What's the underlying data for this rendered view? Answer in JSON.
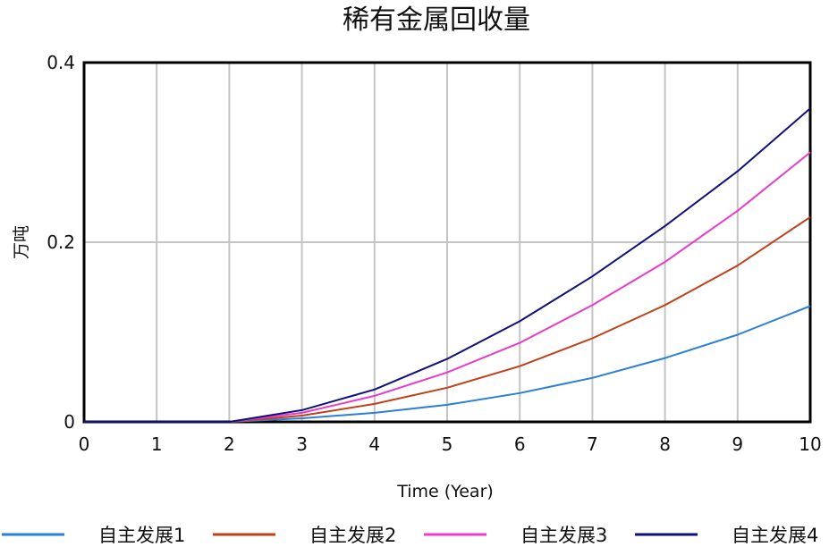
{
  "chart_data": {
    "type": "line",
    "title": "稀有金属回收量",
    "xlabel": "Time (Year)",
    "ylabel": "万吨",
    "xlim": [
      0,
      10
    ],
    "ylim": [
      0,
      0.4
    ],
    "x_ticks": [
      "0",
      "1",
      "2",
      "3",
      "4",
      "5",
      "6",
      "7",
      "8",
      "9",
      "10"
    ],
    "y_ticks": [
      "0",
      "0.2",
      "0.4"
    ],
    "grid": true,
    "legend_position": "bottom",
    "x": [
      0,
      1,
      2,
      3,
      4,
      5,
      6,
      7,
      8,
      9,
      10
    ],
    "series": [
      {
        "name": "自主发展1",
        "color": "#2a7fd6",
        "values": [
          0,
          0,
          0,
          0.004,
          0.01,
          0.019,
          0.032,
          0.049,
          0.071,
          0.097,
          0.129
        ]
      },
      {
        "name": "自主发展2",
        "color": "#c0401a",
        "values": [
          0,
          0,
          0,
          0.007,
          0.02,
          0.038,
          0.062,
          0.093,
          0.13,
          0.174,
          0.228
        ]
      },
      {
        "name": "自主发展3",
        "color": "#e83cc8",
        "values": [
          0,
          0,
          0,
          0.01,
          0.029,
          0.055,
          0.088,
          0.13,
          0.178,
          0.235,
          0.3
        ]
      },
      {
        "name": "自主发展4",
        "color": "#10107a",
        "values": [
          0,
          0,
          0,
          0.013,
          0.036,
          0.07,
          0.112,
          0.162,
          0.218,
          0.279,
          0.349
        ]
      }
    ]
  }
}
